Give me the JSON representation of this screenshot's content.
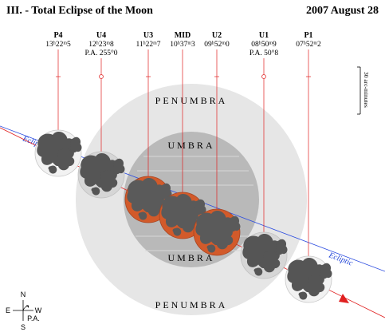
{
  "header": {
    "title": "III. - Total Eclipse of the Moon",
    "date": "2007 August 28"
  },
  "contacts": [
    {
      "label": "P4",
      "time": "13ʰ22ᵐ5",
      "pa": ""
    },
    {
      "label": "U4",
      "time": "12ʰ23ᵐ8",
      "pa": "P.A. 255°0"
    },
    {
      "label": "U3",
      "time": "11ʰ22ᵐ7",
      "pa": ""
    },
    {
      "label": "MID",
      "time": "10ʰ37ᵐ3",
      "pa": ""
    },
    {
      "label": "U2",
      "time": "09ʰ52ᵐ0",
      "pa": ""
    },
    {
      "label": "U1",
      "time": "08ʰ50ᵐ9",
      "pa": "P.A. 50°8"
    },
    {
      "label": "P1",
      "time": "07ʰ52ᵐ2",
      "pa": ""
    }
  ],
  "zones": {
    "penumbra_top": "PENUMBRA",
    "penumbra_bottom": "PENUMBRA",
    "umbra_top": "UMBRA",
    "umbra_bottom": "UMBRA"
  },
  "ecliptic": {
    "left": "Ecliptic",
    "right": "Ecliptic"
  },
  "scale_bar": {
    "label": "30 arc-minutes"
  },
  "compass": {
    "n": "N",
    "s": "S",
    "e": "E",
    "w": "W",
    "pa": "P.A."
  },
  "colors": {
    "penumbra": "#e5e5e5",
    "umbra": "#b8b8b8",
    "moon_in_umbra": "#d25a2a",
    "moon_light": "#efefef",
    "maria": "#555555",
    "ecliptic": "#2a4be0",
    "moon_path": "#e02020"
  }
}
